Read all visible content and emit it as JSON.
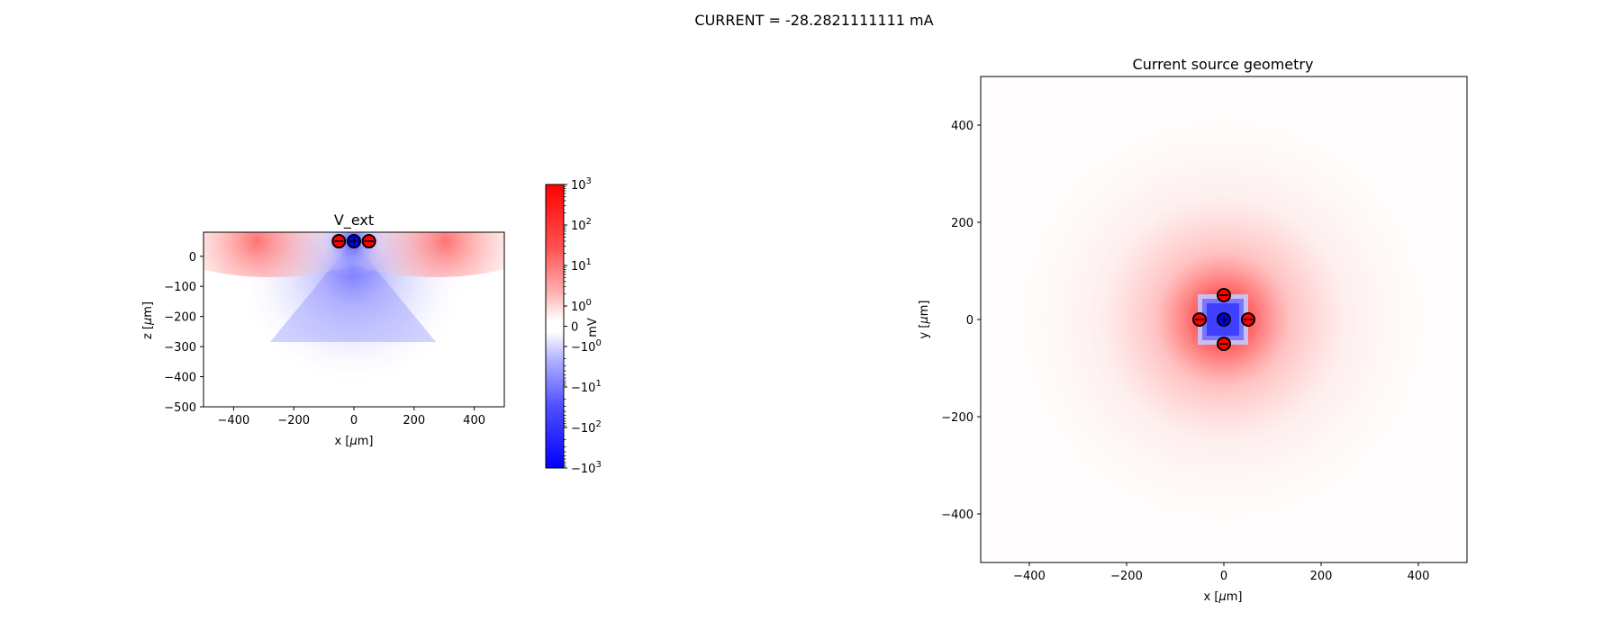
{
  "suptitle": "CURRENT = -28.2821111111 mA",
  "colors": {
    "positive": "#ff0000",
    "negative": "#0000ff",
    "neutral": "#ffffff"
  },
  "chart_data": [
    {
      "type": "heatmap",
      "title": "V_ext",
      "xlabel": "x [μm]",
      "ylabel": "z [μm]",
      "xlim": [
        -500,
        500
      ],
      "ylim": [
        -500,
        80
      ],
      "xticks": [
        -400,
        -200,
        0,
        200,
        400
      ],
      "xtick_labels": [
        "−400",
        "−200",
        "0",
        "200",
        "400"
      ],
      "yticks": [
        0,
        -100,
        -200,
        -300,
        -400,
        -500
      ],
      "ytick_labels": [
        "0",
        "−100",
        "−200",
        "−300",
        "−400",
        "−500"
      ],
      "colormap": "bwr",
      "colorbar": {
        "label": "mV",
        "scale": "symlog",
        "range": [
          -1000,
          1000
        ],
        "ticks": [
          1000,
          100,
          10,
          1,
          0,
          -1,
          -10,
          -100,
          -1000
        ],
        "tick_labels": [
          "10^3",
          "10^2",
          "10^1",
          "10^0",
          "0",
          "−10^0",
          "−10^1",
          "−10^2",
          "−10^3"
        ]
      },
      "electrodes": [
        {
          "x": -50,
          "z": 50,
          "sign": "negative"
        },
        {
          "x": 0,
          "z": 50,
          "sign": "positive"
        },
        {
          "x": 50,
          "z": 50,
          "sign": "negative"
        }
      ]
    },
    {
      "type": "heatmap",
      "title": "Current source geometry",
      "xlabel": "x [μm]",
      "ylabel": "y [μm]",
      "xlim": [
        -500,
        500
      ],
      "ylim": [
        -500,
        500
      ],
      "xticks": [
        -400,
        -200,
        0,
        200,
        400
      ],
      "xtick_labels": [
        "−400",
        "−200",
        "0",
        "200",
        "400"
      ],
      "yticks": [
        400,
        200,
        0,
        -200,
        -400
      ],
      "ytick_labels": [
        "400",
        "200",
        "0",
        "−200",
        "−400"
      ],
      "colormap": "bwr",
      "electrodes": [
        {
          "x": 0,
          "y": 50,
          "sign": "negative"
        },
        {
          "x": -50,
          "y": 0,
          "sign": "negative"
        },
        {
          "x": 0,
          "y": 0,
          "sign": "positive"
        },
        {
          "x": 50,
          "y": 0,
          "sign": "negative"
        },
        {
          "x": 0,
          "y": -50,
          "sign": "negative"
        }
      ]
    }
  ]
}
